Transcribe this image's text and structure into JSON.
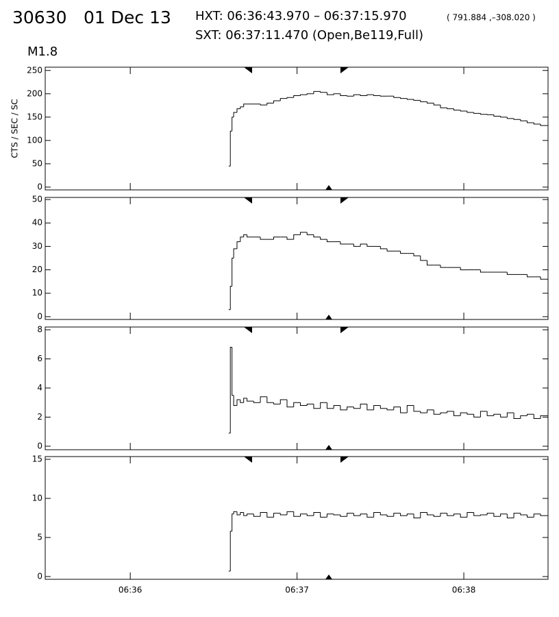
{
  "header": {
    "id": "30630",
    "date": "01 Dec 13",
    "hxt": "HXT: 06:36:43.970 – 06:37:15.970",
    "position": "( 791.884 ,–308.020 )",
    "sxt": "SXT: 06:37:11.470 (Open,Be119,Full)",
    "class": "M1.8"
  },
  "chart_data": [
    {
      "type": "line",
      "drawstyle": "steps-post",
      "ylabel": "CTS / SEC / SC",
      "color": "#000000",
      "xlim": [
        395.49,
        398.505
      ],
      "ylim": [
        -6,
        257
      ],
      "yticks": [
        0,
        50,
        100,
        150,
        200,
        250
      ],
      "x": [
        396.59,
        396.6,
        396.61,
        396.62,
        396.64,
        396.66,
        396.68,
        396.7,
        396.74,
        396.78,
        396.82,
        396.86,
        396.9,
        396.94,
        396.98,
        397.02,
        397.06,
        397.1,
        397.14,
        397.18,
        397.22,
        397.26,
        397.3,
        397.34,
        397.38,
        397.42,
        397.46,
        397.5,
        397.54,
        397.58,
        397.62,
        397.66,
        397.7,
        397.74,
        397.78,
        397.82,
        397.86,
        397.9,
        397.94,
        397.98,
        398.02,
        398.06,
        398.1,
        398.14,
        398.18,
        398.22,
        398.26,
        398.3,
        398.34,
        398.38,
        398.42,
        398.46
      ],
      "values": [
        45,
        120,
        150,
        160,
        168,
        172,
        178,
        178,
        178,
        176,
        180,
        185,
        190,
        192,
        196,
        198,
        200,
        205,
        203,
        198,
        200,
        196,
        195,
        198,
        196,
        198,
        196,
        195,
        195,
        192,
        190,
        188,
        186,
        183,
        180,
        176,
        170,
        168,
        165,
        163,
        160,
        158,
        156,
        155,
        152,
        150,
        147,
        145,
        142,
        138,
        135,
        132
      ]
    },
    {
      "type": "line",
      "drawstyle": "steps-post",
      "color": "#000000",
      "xlim": [
        395.49,
        398.505
      ],
      "ylim": [
        -1.2,
        50.9
      ],
      "yticks": [
        0,
        10,
        20,
        30,
        40,
        50
      ],
      "x": [
        396.59,
        396.6,
        396.61,
        396.62,
        396.64,
        396.66,
        396.68,
        396.7,
        396.74,
        396.78,
        396.82,
        396.86,
        396.9,
        396.94,
        396.98,
        397.02,
        397.06,
        397.1,
        397.14,
        397.18,
        397.22,
        397.26,
        397.3,
        397.34,
        397.38,
        397.42,
        397.46,
        397.5,
        397.54,
        397.58,
        397.62,
        397.66,
        397.7,
        397.74,
        397.78,
        397.82,
        397.86,
        397.9,
        397.94,
        397.98,
        398.02,
        398.06,
        398.1,
        398.14,
        398.18,
        398.22,
        398.26,
        398.3,
        398.34,
        398.38,
        398.42,
        398.46
      ],
      "values": [
        3,
        13,
        25,
        29,
        32,
        34,
        35,
        34,
        34,
        33,
        33,
        34,
        34,
        33,
        35,
        36,
        35,
        34,
        33,
        32,
        32,
        31,
        31,
        30,
        31,
        30,
        30,
        29,
        28,
        28,
        27,
        27,
        26,
        24,
        22,
        22,
        21,
        21,
        21,
        20,
        20,
        20,
        19,
        19,
        19,
        19,
        18,
        18,
        18,
        17,
        17,
        16
      ]
    },
    {
      "type": "line",
      "drawstyle": "steps-post",
      "color": "#000000",
      "xlim": [
        395.49,
        398.505
      ],
      "ylim": [
        -0.24,
        8.19
      ],
      "yticks": [
        0,
        2,
        4,
        6,
        8
      ],
      "x": [
        396.59,
        396.6,
        396.61,
        396.62,
        396.64,
        396.66,
        396.68,
        396.7,
        396.74,
        396.78,
        396.82,
        396.86,
        396.9,
        396.94,
        396.98,
        397.02,
        397.06,
        397.1,
        397.14,
        397.18,
        397.22,
        397.26,
        397.3,
        397.34,
        397.38,
        397.42,
        397.46,
        397.5,
        397.54,
        397.58,
        397.62,
        397.66,
        397.7,
        397.74,
        397.78,
        397.82,
        397.86,
        397.9,
        397.94,
        397.98,
        398.02,
        398.06,
        398.1,
        398.14,
        398.18,
        398.22,
        398.26,
        398.3,
        398.34,
        398.38,
        398.42,
        398.46
      ],
      "values": [
        0.9,
        6.8,
        3.5,
        2.8,
        3.2,
        3.0,
        3.3,
        3.1,
        3.0,
        3.4,
        3.0,
        2.9,
        3.2,
        2.7,
        3.0,
        2.8,
        2.9,
        2.6,
        3.0,
        2.6,
        2.8,
        2.5,
        2.7,
        2.6,
        2.9,
        2.5,
        2.8,
        2.6,
        2.5,
        2.7,
        2.3,
        2.8,
        2.4,
        2.3,
        2.5,
        2.2,
        2.3,
        2.4,
        2.1,
        2.3,
        2.2,
        2.0,
        2.4,
        2.1,
        2.2,
        2.0,
        2.3,
        1.9,
        2.1,
        2.2,
        1.9,
        2.1
      ]
    },
    {
      "type": "line",
      "drawstyle": "steps-post",
      "color": "#000000",
      "xlim": [
        395.49,
        398.505
      ],
      "ylim": [
        -0.35,
        15.35
      ],
      "yticks": [
        0,
        5,
        10,
        15
      ],
      "xticks": [
        {
          "value": 396,
          "label": "06:36"
        },
        {
          "value": 397,
          "label": "06:37"
        },
        {
          "value": 398,
          "label": "06:38"
        }
      ],
      "x": [
        396.59,
        396.6,
        396.61,
        396.62,
        396.64,
        396.66,
        396.68,
        396.7,
        396.74,
        396.78,
        396.82,
        396.86,
        396.9,
        396.94,
        396.98,
        397.02,
        397.06,
        397.1,
        397.14,
        397.18,
        397.22,
        397.26,
        397.3,
        397.34,
        397.38,
        397.42,
        397.46,
        397.5,
        397.54,
        397.58,
        397.62,
        397.66,
        397.7,
        397.74,
        397.78,
        397.82,
        397.86,
        397.9,
        397.94,
        397.98,
        398.02,
        398.06,
        398.1,
        398.14,
        398.18,
        398.22,
        398.26,
        398.3,
        398.34,
        398.38,
        398.42,
        398.46
      ],
      "values": [
        0.7,
        5.8,
        8.0,
        8.3,
        7.9,
        8.2,
        7.8,
        8.0,
        7.7,
        8.2,
        7.6,
        8.1,
        7.9,
        8.3,
        7.7,
        8.0,
        7.8,
        8.2,
        7.6,
        8.0,
        7.9,
        7.7,
        8.1,
        7.8,
        8.0,
        7.6,
        8.2,
        7.9,
        7.7,
        8.1,
        7.8,
        8.0,
        7.5,
        8.2,
        7.9,
        7.7,
        8.1,
        7.8,
        8.0,
        7.6,
        8.2,
        7.8,
        7.9,
        8.1,
        7.7,
        8.0,
        7.5,
        8.1,
        7.9,
        7.6,
        8.0,
        7.8
      ]
    }
  ]
}
